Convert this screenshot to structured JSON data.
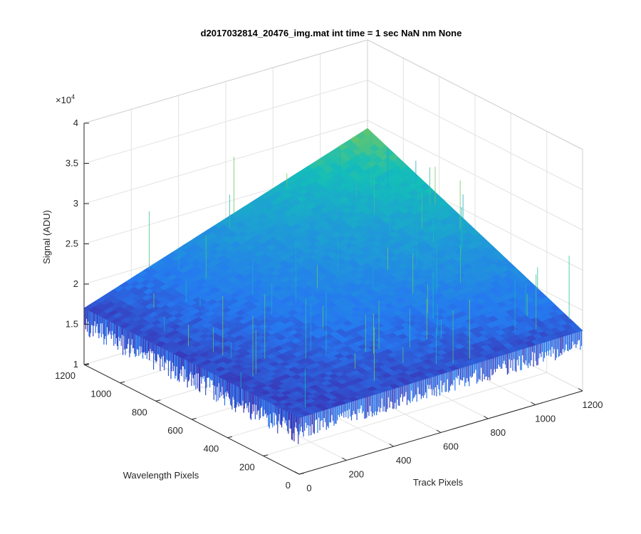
{
  "chart_data": {
    "type": "surface",
    "title": "d2017032814_20476_img.mat int time = 1 sec  NaN nm None",
    "xlabel": "Track Pixels",
    "ylabel": "Wavelength Pixels",
    "zlabel": "Signal (ADU)",
    "z_exponent_label": "×10",
    "z_exponent_power": "4",
    "x_ticks": [
      "0",
      "200",
      "400",
      "600",
      "800",
      "1000",
      "1200"
    ],
    "y_ticks": [
      "0",
      "200",
      "400",
      "600",
      "800",
      "1000",
      "1200"
    ],
    "z_ticks": [
      "1",
      "1.5",
      "2",
      "2.5",
      "3",
      "3.5",
      "4"
    ],
    "xlim": [
      0,
      1200
    ],
    "ylim": [
      0,
      1200
    ],
    "zlim": [
      10000,
      40000
    ],
    "grid": true,
    "colormap": "parula",
    "surface_corner_z": {
      "x0_y0": 17000,
      "xmax_y0": 17500,
      "x0_ymax": 17000,
      "xmax_ymax": 29000
    },
    "colors": {
      "low": "#3e26a8",
      "mid": "#1f9bd7",
      "high": "#4cc26a"
    }
  }
}
